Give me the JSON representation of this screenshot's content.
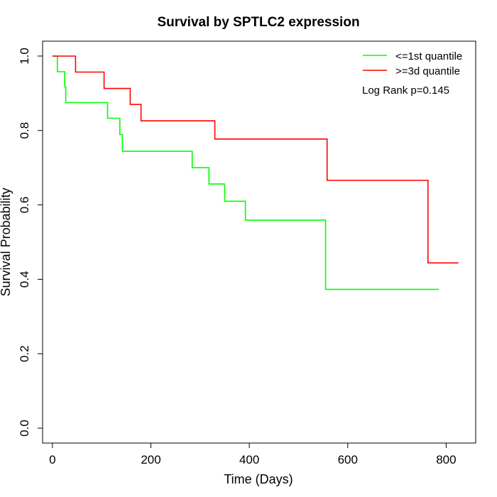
{
  "chart_data": {
    "type": "line",
    "title": "Survival by SPTLC2 expression",
    "xlabel": "Time (Days)",
    "ylabel": "Survival Probability",
    "xlim": [
      -20,
      860
    ],
    "ylim": [
      -0.04,
      1.04
    ],
    "x_ticks": [
      0,
      200,
      400,
      600,
      800
    ],
    "y_ticks": [
      0.0,
      0.2,
      0.4,
      0.6,
      0.8,
      1.0
    ],
    "x_tick_labels": [
      "0",
      "200",
      "400",
      "600",
      "800"
    ],
    "y_tick_labels": [
      "0.0",
      "0.2",
      "0.4",
      "0.6",
      "0.8",
      "1.0"
    ],
    "legend_position": "top-right",
    "annotation": "Log Rank p=0.145",
    "grid": false,
    "series": [
      {
        "name": "<=1st quantile",
        "color": "#00ff00",
        "step": true,
        "points": [
          [
            0,
            1.0
          ],
          [
            10,
            0.958
          ],
          [
            25,
            0.917
          ],
          [
            27,
            0.875
          ],
          [
            112,
            0.833
          ],
          [
            137,
            0.789
          ],
          [
            142,
            0.744
          ],
          [
            284,
            0.7
          ],
          [
            318,
            0.656
          ],
          [
            350,
            0.61
          ],
          [
            392,
            0.559
          ],
          [
            555,
            0.373
          ],
          [
            785,
            0.373
          ]
        ]
      },
      {
        "name": ">=3d quantile",
        "color": "#ff0000",
        "step": true,
        "points": [
          [
            0,
            1.0
          ],
          [
            47,
            0.957
          ],
          [
            105,
            0.913
          ],
          [
            158,
            0.87
          ],
          [
            180,
            0.826
          ],
          [
            330,
            0.777
          ],
          [
            558,
            0.666
          ],
          [
            763,
            0.444
          ],
          [
            825,
            0.444
          ]
        ]
      }
    ]
  }
}
